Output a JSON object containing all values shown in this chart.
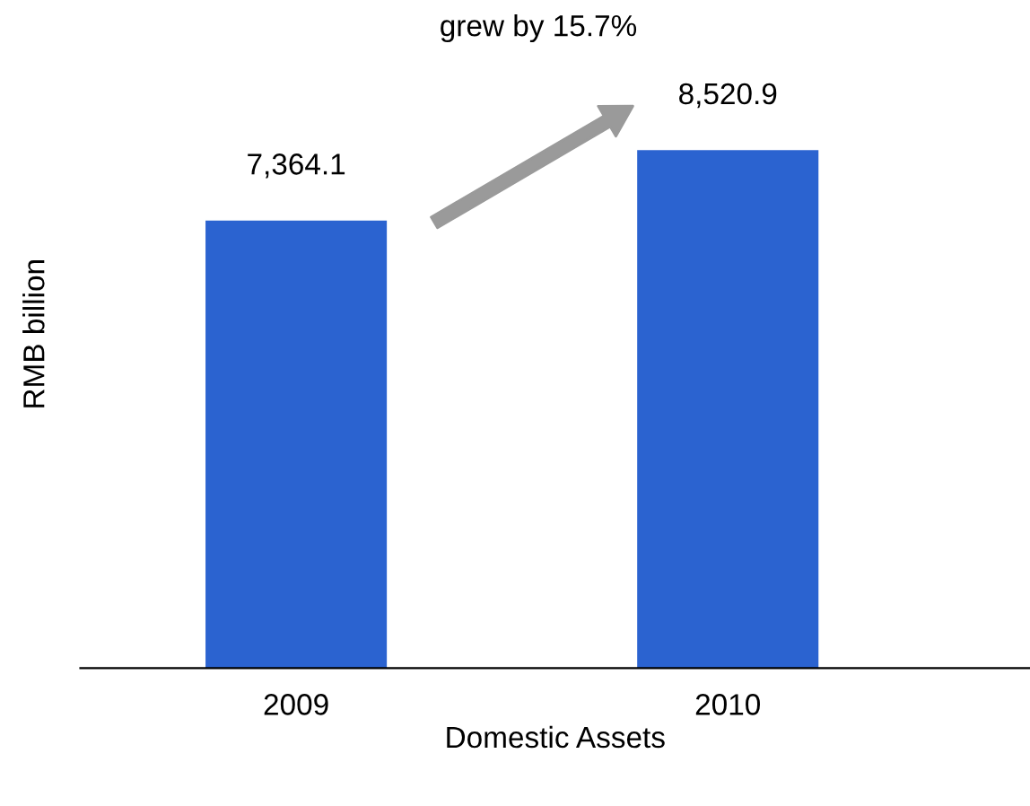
{
  "chart_data": {
    "type": "bar",
    "xlabel": "Domestic Assets",
    "ylabel": "RMB billion",
    "categories": [
      "2009",
      "2010"
    ],
    "values": [
      7364.1,
      8520.9
    ],
    "value_labels": [
      "7,364.1",
      "8,520.9"
    ],
    "color": "#2b63d0",
    "tick_labels": "x",
    "grid": false,
    "legend": false,
    "annotations": [
      "grew by 15.7%"
    ]
  }
}
